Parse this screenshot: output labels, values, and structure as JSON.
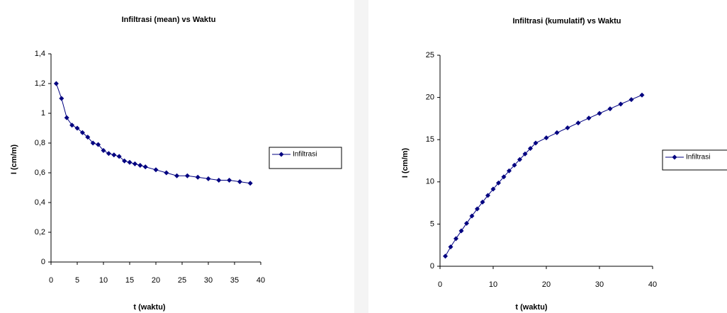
{
  "chart_data": [
    {
      "type": "line",
      "title": "Infiltrasi (mean) vs Waktu",
      "x_label": "t (waktu)",
      "y_label": "I (cm/m)",
      "x": [
        1,
        2,
        3,
        4,
        5,
        6,
        7,
        8,
        9,
        10,
        11,
        12,
        13,
        14,
        15,
        16,
        17,
        18,
        20,
        22,
        24,
        26,
        28,
        30,
        32,
        34,
        36,
        38
      ],
      "series": [
        {
          "name": "Infiltrasi",
          "color": "#000080",
          "values": [
            1.2,
            1.1,
            0.97,
            0.92,
            0.9,
            0.87,
            0.84,
            0.8,
            0.79,
            0.75,
            0.73,
            0.72,
            0.71,
            0.68,
            0.67,
            0.66,
            0.65,
            0.64,
            0.62,
            0.6,
            0.58,
            0.58,
            0.57,
            0.56,
            0.55,
            0.55,
            0.54,
            0.53
          ]
        }
      ],
      "xlim": [
        0,
        40
      ],
      "xticks": [
        0,
        5,
        10,
        15,
        20,
        25,
        30,
        35,
        40
      ],
      "ylim": [
        0,
        1.4
      ],
      "yticks": [
        0,
        {
          "value": 0.2,
          "label": "0,2"
        },
        {
          "value": 0.4,
          "label": "0,4"
        },
        {
          "value": 0.6,
          "label": "0,6"
        },
        {
          "value": 0.8,
          "label": "0,8"
        },
        1,
        {
          "value": 1.2,
          "label": "1,2"
        },
        {
          "value": 1.4,
          "label": "1,4"
        }
      ],
      "grid": false,
      "legend": "right"
    },
    {
      "type": "line",
      "title": "Infiltrasi (kumulatif) vs Waktu",
      "x_label": "t (waktu)",
      "y_label": "I (cm/m)",
      "x": [
        1,
        2,
        3,
        4,
        5,
        6,
        7,
        8,
        9,
        10,
        11,
        12,
        13,
        14,
        15,
        16,
        17,
        18,
        20,
        22,
        24,
        26,
        28,
        30,
        32,
        34,
        36,
        38
      ],
      "series": [
        {
          "name": "Infiltrasi",
          "color": "#000080",
          "values": [
            1.2,
            2.3,
            3.27,
            4.19,
            5.09,
            5.96,
            6.8,
            7.6,
            8.39,
            9.14,
            9.87,
            10.59,
            11.3,
            11.98,
            12.65,
            13.31,
            13.96,
            14.6,
            15.22,
            15.82,
            16.4,
            16.98,
            17.55,
            18.11,
            18.66,
            19.21,
            19.75,
            20.28
          ]
        }
      ],
      "xlim": [
        0,
        40
      ],
      "xticks": [
        0,
        10,
        20,
        30,
        40
      ],
      "ylim": [
        0,
        25
      ],
      "yticks": [
        0,
        5,
        10,
        15,
        20,
        25
      ],
      "grid": false,
      "legend": "right"
    }
  ]
}
